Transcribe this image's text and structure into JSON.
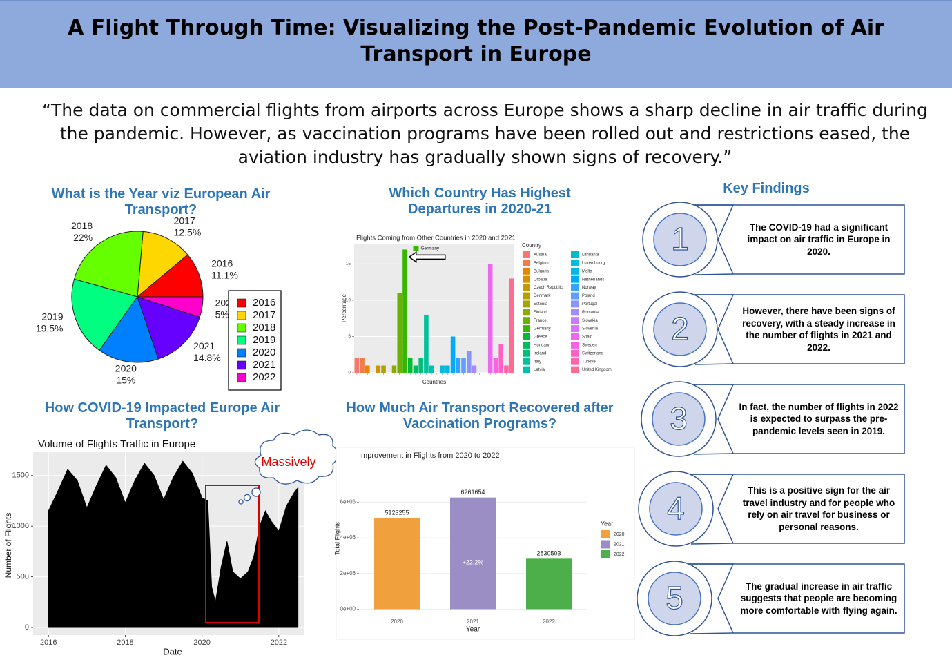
{
  "header": {
    "title": "A Flight Through Time: Visualizing the Post-Pandemic Evolution of Air Transport in Europe"
  },
  "quote": "“The data on commercial flights from airports across Europe shows a sharp decline in air traffic during the pandemic. However, as vaccination programs have been rolled out and restrictions eased, the aviation industry has gradually shown signs of recovery.”",
  "key_findings": {
    "heading": "Key Findings",
    "items": [
      {
        "number": "1",
        "text": "The COVID-19 had a significant impact on air traffic in Europe in 2020."
      },
      {
        "number": "2",
        "text": "However, there have been signs of recovery, with a steady increase in the number of flights in 2021 and 2022."
      },
      {
        "number": "3",
        "text": "In fact, the number of flights in 2022 is expected to surpass the pre-pandemic levels seen in 2019."
      },
      {
        "number": "4",
        "text": "This is a positive sign for the air travel industry and for people who rely on air travel for business or personal reasons."
      },
      {
        "number": "5",
        "text": "The gradual increase in air traffic suggests that people are becoming more comfortable with flying again."
      }
    ]
  },
  "chart_data": [
    {
      "type": "pie",
      "heading": "What is the Year viz European Air Transport?",
      "categories": [
        "2016",
        "2017",
        "2018",
        "2019",
        "2020",
        "2021",
        "2022"
      ],
      "values": [
        11.1,
        12.5,
        22,
        19.5,
        15,
        14.8,
        5
      ],
      "value_labels": [
        "11.1%",
        "12.5%",
        "22%",
        "19.5%",
        "15%",
        "14.8%",
        "5%"
      ],
      "colors": [
        "#FF0000",
        "#FFD700",
        "#66FF00",
        "#00FF80",
        "#0080FF",
        "#6600FF",
        "#FF00CC"
      ],
      "direction": "counterclockwise",
      "legend": "right"
    },
    {
      "type": "bar",
      "heading": "Which Country Has Highest Departures in 2020-21",
      "title": "Flights Coming from Other Countries in 2020 and 2021",
      "x_label": "Countries",
      "y_label": "Percentage",
      "legend_title": "Country",
      "categories": [
        "Austria",
        "Belgium",
        "Bulgaria",
        "Croatia",
        "Czech Republic",
        "Denmark",
        "Estonia",
        "Finland",
        "France",
        "Germany",
        "Greece",
        "Hungary",
        "Ireland",
        "Italy",
        "Latvia",
        "Lithuania",
        "Luxembourg",
        "Malta",
        "Netherlands",
        "Norway",
        "Poland",
        "Portugal",
        "Romania",
        "Slovakia",
        "Slovenia",
        "Spain",
        "Sweden",
        "Switzerland",
        "Türkiye",
        "United Kingdom"
      ],
      "values": [
        2,
        2,
        1,
        0,
        1,
        1,
        0,
        1,
        11,
        17,
        2,
        1,
        2,
        8,
        1,
        0,
        1,
        1,
        5,
        2,
        2,
        3,
        1,
        0,
        0,
        15,
        2,
        4,
        1,
        13
      ],
      "colors": [
        "#F8766D",
        "#F07E4D",
        "#E58700",
        "#D89000",
        "#C99800",
        "#B79F00",
        "#A3A500",
        "#8BAB00",
        "#6BB100",
        "#39B600",
        "#00BA38",
        "#00BD5C",
        "#00C078",
        "#00C19A",
        "#00C0B3",
        "#00BFC4",
        "#00BCD8",
        "#00B6EB",
        "#00ABFD",
        "#35A2FF",
        "#619CFF",
        "#8B93FF",
        "#A58AFF",
        "#C77CFF",
        "#DB72FB",
        "#EC69EF",
        "#F763E0",
        "#FF61C3",
        "#FF65AC",
        "#FF6C91"
      ],
      "ylim": [
        0,
        17.8
      ],
      "yticks": [
        0,
        5,
        10,
        15
      ],
      "grid": true,
      "highlight": "Germany",
      "legend": "right"
    },
    {
      "type": "area",
      "heading": "How COVID-19 Impacted Europe Air Transport?",
      "title": "Volume of Flights Traffic in Europe",
      "x_label": "Date",
      "y_label": "Number of Flights",
      "x": [
        2016.0,
        2016.25,
        2016.5,
        2016.75,
        2017.0,
        2017.25,
        2017.5,
        2017.75,
        2018.0,
        2018.25,
        2018.5,
        2018.75,
        2019.0,
        2019.25,
        2019.5,
        2019.75,
        2020.0,
        2020.15,
        2020.25,
        2020.35,
        2020.5,
        2020.65,
        2020.8,
        2021.0,
        2021.2,
        2021.35,
        2021.5,
        2021.65,
        2021.8,
        2022.0,
        2022.2,
        2022.4,
        2022.5
      ],
      "values": [
        1150,
        1350,
        1560,
        1450,
        1180,
        1400,
        1600,
        1480,
        1230,
        1450,
        1620,
        1500,
        1260,
        1480,
        1640,
        1520,
        1280,
        1250,
        400,
        250,
        600,
        850,
        550,
        480,
        550,
        700,
        1000,
        1150,
        1050,
        950,
        1200,
        1330,
        1380
      ],
      "color": "#000000",
      "xlim": [
        2015.6,
        2022.65
      ],
      "xticks": [
        2016,
        2018,
        2020,
        2022
      ],
      "ylim": [
        -75,
        1730
      ],
      "yticks": [
        0,
        500,
        1000,
        1500
      ],
      "grid": true,
      "annotation": "Massively"
    },
    {
      "type": "bar",
      "heading": "How Much Air Transport Recovered after Vaccination Programs?",
      "title": "Improvement in Flights from 2020 to 2022",
      "x_label": "Year",
      "y_label": "Total Flights",
      "legend_title": "Year",
      "categories": [
        "2020",
        "2021",
        "2022"
      ],
      "values": [
        5123255,
        6261654,
        2830503
      ],
      "colors": [
        "#F0A03C",
        "#9B8EC4",
        "#4DAF4A"
      ],
      "ylim": [
        -370000,
        8300000
      ],
      "yticks": [
        {
          "value": 0,
          "label": "0e+00"
        },
        {
          "value": 2000000,
          "label": "2e+06"
        },
        {
          "value": 4000000,
          "label": "4e+06"
        },
        {
          "value": 6000000,
          "label": "6e+06"
        }
      ],
      "grid": true,
      "annotation": "+22.2%",
      "show_values": true,
      "legend": "right"
    }
  ]
}
